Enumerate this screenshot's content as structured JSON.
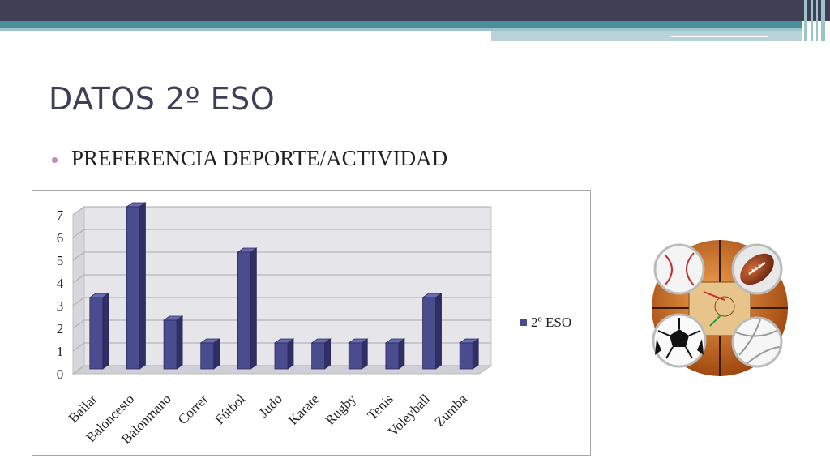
{
  "slide": {
    "title": "DATOS 2º ESO",
    "bullet": "PREFERENCIA DEPORTE/ACTIVIDAD"
  },
  "colors": {
    "accent_dark": "#3f3f56",
    "accent_teal": "#4a8f9a",
    "bar_fill": "#4b4b8f",
    "bullet": "#c08abb"
  },
  "chart_data": {
    "type": "bar",
    "categories": [
      "Bailar",
      "Baloncesto",
      "Balonmano",
      "Correr",
      "Fútbol",
      "Judo",
      "Karate",
      "Rugby",
      "Tenis",
      "Voleyball",
      "Zumba"
    ],
    "series": [
      {
        "name": "2º ESO",
        "values": [
          3,
          7,
          2,
          1,
          5,
          1,
          1,
          1,
          1,
          3,
          1
        ]
      }
    ],
    "yticks": [
      0,
      1,
      2,
      3,
      4,
      5,
      6,
      7
    ],
    "ylim": [
      0,
      7
    ],
    "grid": true,
    "legend": "right",
    "style": "3d-bar"
  },
  "illustration": "sports-balls-icon"
}
